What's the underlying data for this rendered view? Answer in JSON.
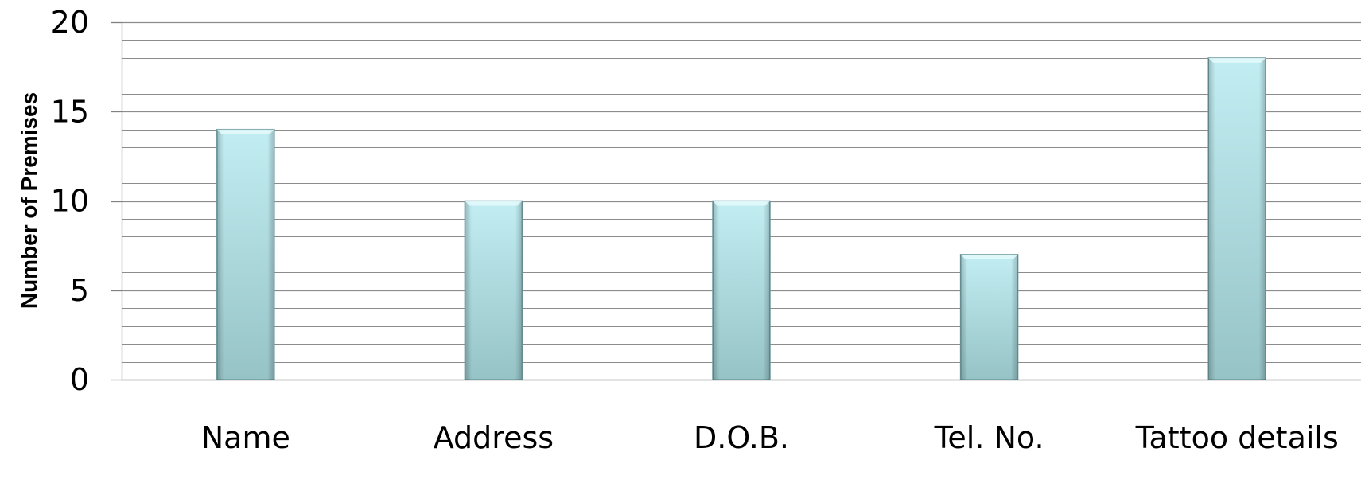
{
  "chart_data": {
    "type": "bar",
    "title": "",
    "xlabel": "",
    "ylabel": "Number of Premises",
    "categories": [
      "Name",
      "Address",
      "D.O.B.",
      "Tel. No.",
      "Tattoo details"
    ],
    "values": [
      14,
      10,
      10,
      7,
      18
    ],
    "ylim": [
      0,
      20
    ],
    "yticks": [
      0,
      5,
      10,
      15,
      20
    ],
    "minor_gridlines_per_major": 5,
    "grid": true,
    "legend": "none",
    "colors": {
      "bar_top": "#c2eef3",
      "bar_bottom": "#96c3c6",
      "bar_edge": "#6f9c9f",
      "gridline": "#8c8c8c",
      "axis": "#808080"
    }
  }
}
